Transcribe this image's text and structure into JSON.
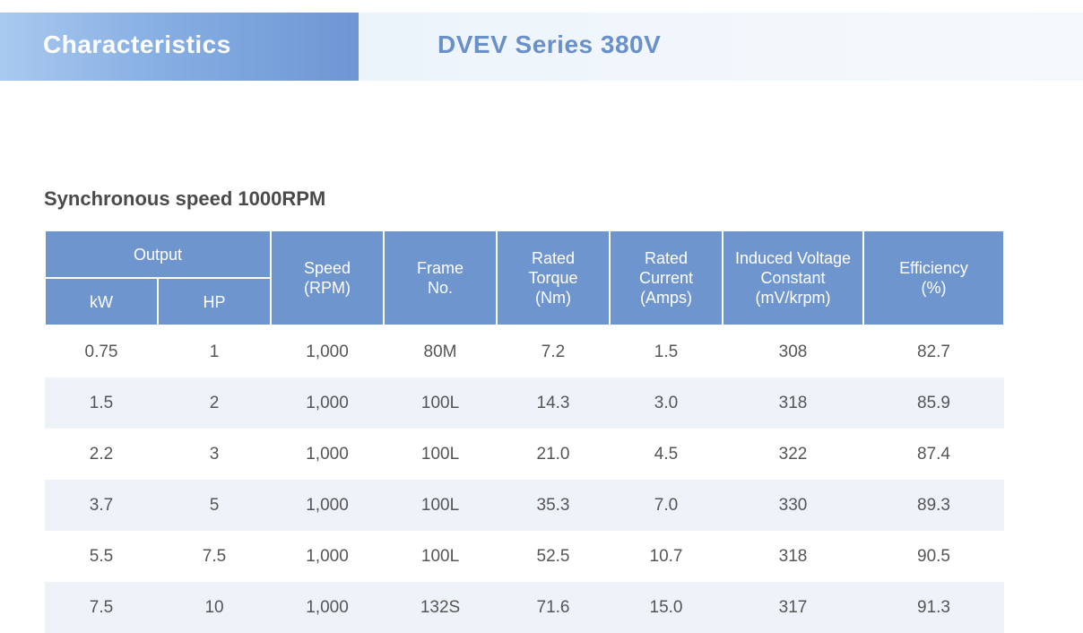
{
  "banner": {
    "tab_label": "Characteristics",
    "title": "DVEV Series 380V"
  },
  "section": {
    "heading": "Synchronous speed 1000RPM"
  },
  "table": {
    "headers": {
      "output": "Output",
      "kw": "kW",
      "hp": "HP",
      "speed": [
        "Speed",
        "(RPM)"
      ],
      "frame": [
        "Frame",
        "No."
      ],
      "torque": [
        "Rated",
        "Torque",
        "(Nm)"
      ],
      "current": [
        "Rated",
        "Current",
        "(Amps)"
      ],
      "voltage": [
        "Induced Voltage",
        "Constant",
        "(mV/krpm)"
      ],
      "efficiency": [
        "Efficiency",
        "(%)"
      ]
    },
    "rows": [
      [
        "0.75",
        "1",
        "1,000",
        "80M",
        "7.2",
        "1.5",
        "308",
        "82.7"
      ],
      [
        "1.5",
        "2",
        "1,000",
        "100L",
        "14.3",
        "3.0",
        "318",
        "85.9"
      ],
      [
        "2.2",
        "3",
        "1,000",
        "100L",
        "21.0",
        "4.5",
        "322",
        "87.4"
      ],
      [
        "3.7",
        "5",
        "1,000",
        "100L",
        "35.3",
        "7.0",
        "330",
        "89.3"
      ],
      [
        "5.5",
        "7.5",
        "1,000",
        "100L",
        "52.5",
        "10.7",
        "318",
        "90.5"
      ],
      [
        "7.5",
        "10",
        "1,000",
        "132S",
        "71.6",
        "15.0",
        "317",
        "91.3"
      ]
    ]
  }
}
